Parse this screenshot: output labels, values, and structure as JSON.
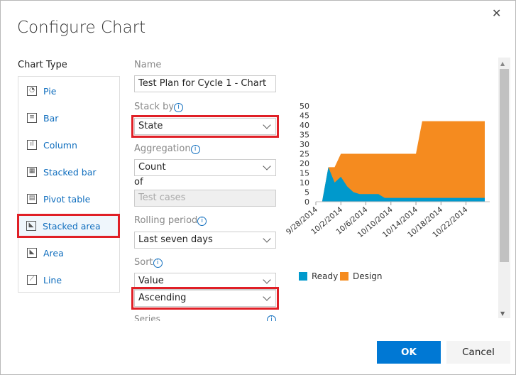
{
  "dialog": {
    "title": "Configure Chart",
    "close_icon": "close-icon"
  },
  "chart_type": {
    "label": "Chart Type",
    "items": [
      {
        "label": "Pie",
        "icon": "pie-icon",
        "glyph": "◔"
      },
      {
        "label": "Bar",
        "icon": "bar-chart-icon",
        "glyph": "≡"
      },
      {
        "label": "Column",
        "icon": "column-chart-icon",
        "glyph": "ıl"
      },
      {
        "label": "Stacked bar",
        "icon": "stacked-bar-icon",
        "glyph": "▦"
      },
      {
        "label": "Pivot table",
        "icon": "pivot-table-icon",
        "glyph": "▤"
      },
      {
        "label": "Stacked area",
        "icon": "stacked-area-icon",
        "glyph": "◣",
        "selected": true
      },
      {
        "label": "Area",
        "icon": "area-chart-icon",
        "glyph": "◣"
      },
      {
        "label": "Line",
        "icon": "line-chart-icon",
        "glyph": "⟋"
      }
    ]
  },
  "form": {
    "name_label": "Name",
    "name_value": "Test Plan for Cycle 1 - Chart",
    "stackby_label": "Stack by",
    "stackby_value": "State",
    "aggregation_label": "Aggregation",
    "aggregation_value": "Count",
    "of_label": "of",
    "of_placeholder": "Test cases",
    "rolling_label": "Rolling period",
    "rolling_value": "Last seven days",
    "sort_label": "Sort",
    "sort_value": "Value",
    "sort_order": "Ascending",
    "series_label": "Series",
    "info_glyph": "i"
  },
  "buttons": {
    "ok": "OK",
    "cancel": "Cancel"
  },
  "colors": {
    "accent": "#0078d4",
    "highlight": "#e01f26",
    "ready": "#0099cc",
    "design": "#f58b1f"
  },
  "chart_data": {
    "type": "area",
    "stacked": true,
    "x": [
      "9/28/2014",
      "9/29/2014",
      "9/30/2014",
      "10/1/2014",
      "10/2/2014",
      "10/3/2014",
      "10/4/2014",
      "10/5/2014",
      "10/6/2014",
      "10/7/2014",
      "10/8/2014",
      "10/9/2014",
      "10/10/2014",
      "10/11/2014",
      "10/12/2014",
      "10/13/2014",
      "10/14/2014",
      "10/15/2014",
      "10/16/2014",
      "10/17/2014",
      "10/18/2014",
      "10/19/2014",
      "10/20/2014",
      "10/21/2014",
      "10/22/2014",
      "10/23/2014",
      "10/24/2014",
      "10/25/2014"
    ],
    "xticks": [
      "9/28/2014",
      "10/2/2014",
      "10/6/2014",
      "10/10/2014",
      "10/14/2014",
      "10/18/2014",
      "10/22/2014"
    ],
    "yticks": [
      0,
      5,
      10,
      15,
      20,
      25,
      30,
      35,
      40,
      45,
      50
    ],
    "ylim": [
      0,
      50
    ],
    "series": [
      {
        "name": "Ready",
        "values": [
          0,
          0,
          18,
          10,
          13,
          8,
          5,
          4,
          4,
          4,
          4,
          2,
          2,
          2,
          2,
          2,
          2,
          2,
          2,
          2,
          2,
          2,
          2,
          2,
          2,
          2,
          2,
          2
        ]
      },
      {
        "name": "Design",
        "values": [
          0,
          0,
          0,
          8,
          12,
          17,
          20,
          21,
          21,
          21,
          21,
          23,
          23,
          23,
          23,
          23,
          23,
          40,
          40,
          40,
          40,
          40,
          40,
          40,
          40,
          40,
          40,
          40
        ]
      }
    ],
    "legend": "bottom-left"
  }
}
